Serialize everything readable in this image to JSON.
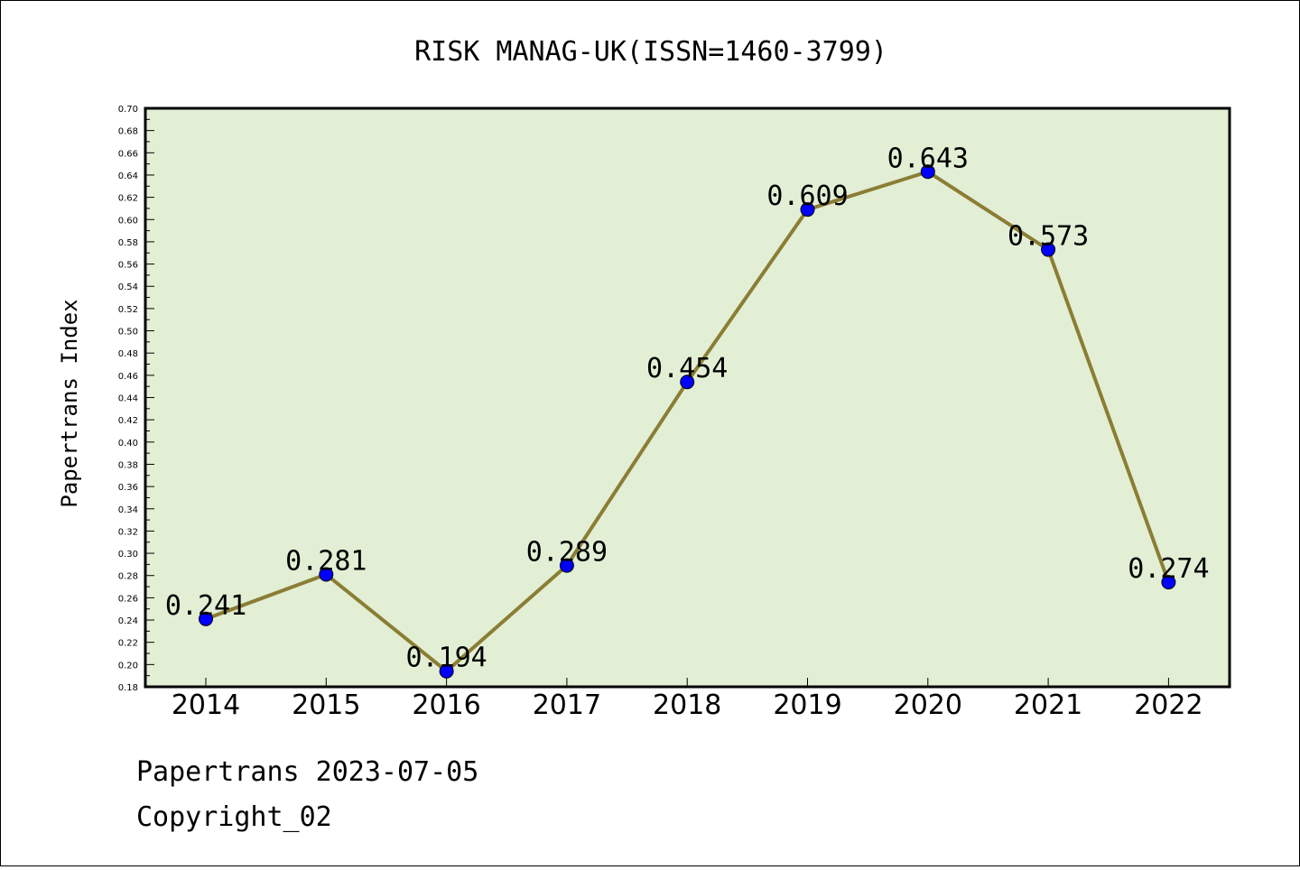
{
  "footer": {
    "line1": "Papertrans 2023-07-05",
    "line2": "Copyright_02"
  },
  "chart_data": {
    "type": "line",
    "title": "RISK MANAG-UK(ISSN=1460-3799)",
    "xlabel": "",
    "ylabel": "Papertrans Index",
    "categories": [
      "2014",
      "2015",
      "2016",
      "2017",
      "2018",
      "2019",
      "2020",
      "2021",
      "2022"
    ],
    "values": [
      0.241,
      0.281,
      0.194,
      0.289,
      0.454,
      0.609,
      0.643,
      0.573,
      0.274
    ],
    "data_labels": [
      "0.241",
      "0.281",
      "0.194",
      "0.289",
      "0.454",
      "0.609",
      "0.643",
      "0.573",
      "0.274"
    ],
    "ylim": [
      0.18,
      0.7
    ],
    "ytick_step": 0.02,
    "grid": false,
    "colors": {
      "plot_background": "#e2efd5",
      "line": "#8b7d34",
      "marker": "#0000ff"
    }
  }
}
